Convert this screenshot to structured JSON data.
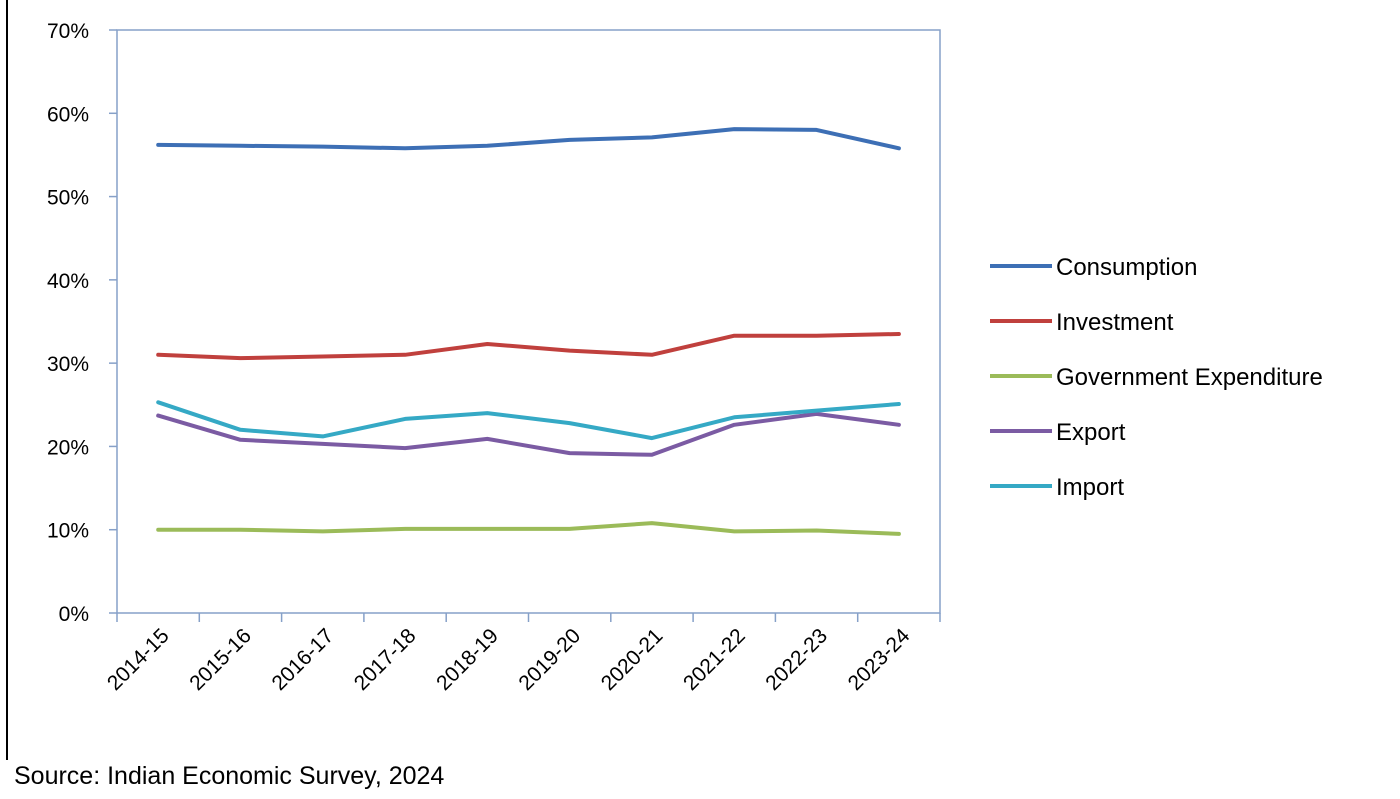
{
  "chart_data": {
    "type": "line",
    "categories": [
      "2014-15",
      "2015-16",
      "2016-17",
      "2017-18",
      "2018-19",
      "2019-20",
      "2020-21",
      "2021-22",
      "2022-23",
      "2023-24"
    ],
    "y_tick_labels": [
      "0%",
      "10%",
      "20%",
      "30%",
      "40%",
      "50%",
      "60%",
      "70%"
    ],
    "ylim": [
      0,
      70
    ],
    "y_unit": "%",
    "grid": false,
    "legend_position": "right",
    "series": [
      {
        "name": "Consumption",
        "color": "#3d6fb5",
        "values": [
          56.2,
          56.1,
          56.0,
          55.8,
          56.1,
          56.8,
          57.1,
          58.1,
          58.0,
          55.8
        ]
      },
      {
        "name": "Investment",
        "color": "#c0403d",
        "values": [
          31.0,
          30.6,
          30.8,
          31.0,
          32.3,
          31.5,
          31.0,
          33.3,
          33.3,
          33.5
        ]
      },
      {
        "name": "Government Expenditure",
        "color": "#9bbb59",
        "values": [
          10.0,
          10.0,
          9.8,
          10.1,
          10.1,
          10.1,
          10.8,
          9.8,
          9.9,
          9.5
        ]
      },
      {
        "name": "Export",
        "color": "#7b5ba3",
        "values": [
          23.7,
          20.8,
          20.3,
          19.8,
          20.9,
          19.2,
          19.0,
          22.6,
          23.9,
          22.6
        ]
      },
      {
        "name": "Import",
        "color": "#35a9c5",
        "values": [
          25.3,
          22.0,
          21.2,
          23.3,
          24.0,
          22.8,
          21.0,
          23.5,
          24.3,
          25.1
        ]
      }
    ]
  },
  "source_text": "Source: Indian Economic Survey, 2024"
}
